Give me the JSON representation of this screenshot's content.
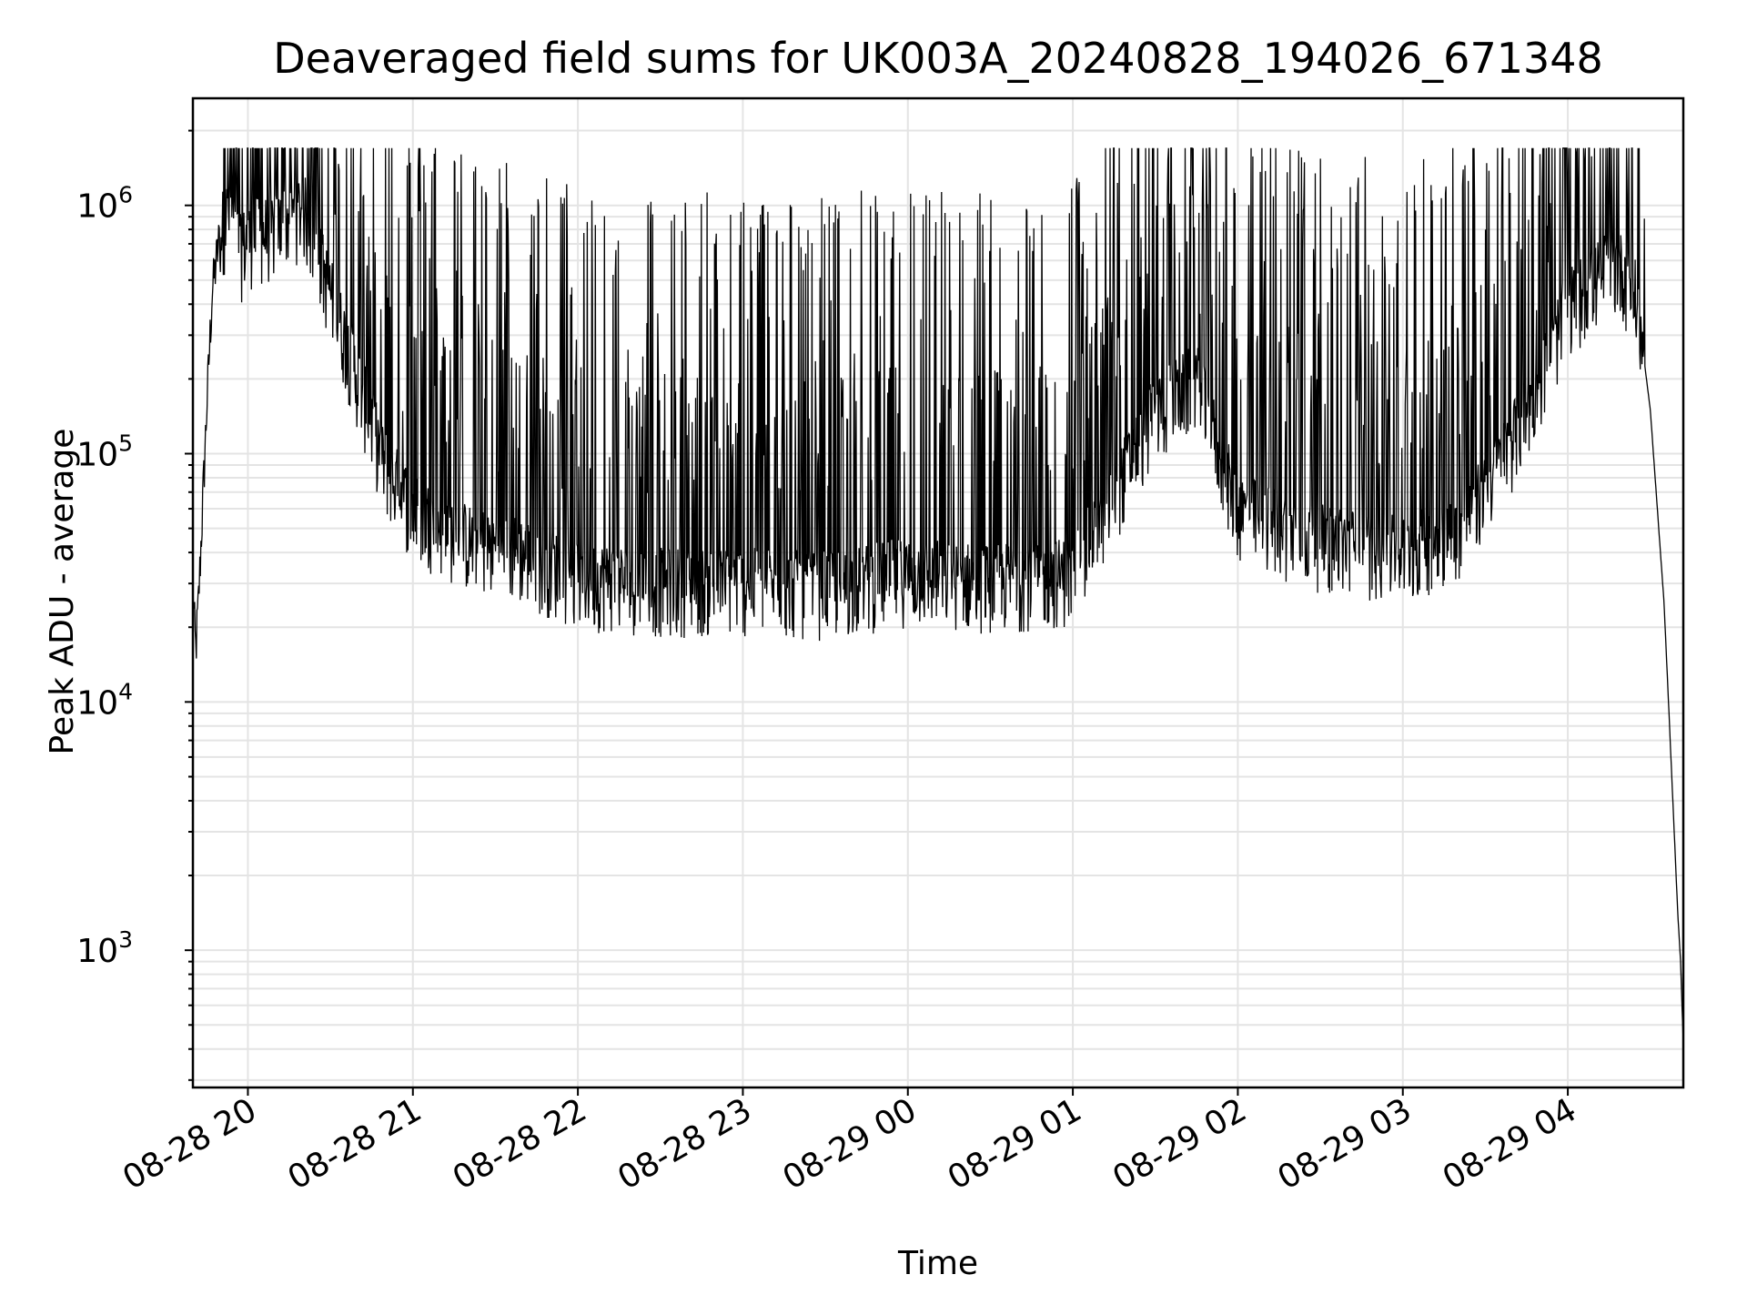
{
  "chart_data": {
    "type": "line",
    "title": "Deaveraged field sums for UK003A_20240828_194026_671348",
    "xlabel": "Time",
    "ylabel": "Peak ADU - average",
    "yscale": "log",
    "ylim": [
      280,
      2700000
    ],
    "xlim": [
      "2024-08-28 19:40",
      "2024-08-29 04:42"
    ],
    "grid": true,
    "x_ticks": [
      {
        "value": "2024-08-28 20:00",
        "label": "08-28 20"
      },
      {
        "value": "2024-08-28 21:00",
        "label": "08-28 21"
      },
      {
        "value": "2024-08-28 22:00",
        "label": "08-28 22"
      },
      {
        "value": "2024-08-28 23:00",
        "label": "08-28 23"
      },
      {
        "value": "2024-08-29 00:00",
        "label": "08-29 00"
      },
      {
        "value": "2024-08-29 01:00",
        "label": "08-29 01"
      },
      {
        "value": "2024-08-29 02:00",
        "label": "08-29 02"
      },
      {
        "value": "2024-08-29 03:00",
        "label": "08-29 03"
      },
      {
        "value": "2024-08-29 04:00",
        "label": "08-29 04"
      }
    ],
    "y_ticks": [
      {
        "value": 1000,
        "base": "10",
        "exp": "3"
      },
      {
        "value": 10000,
        "base": "10",
        "exp": "4"
      },
      {
        "value": 100000,
        "base": "10",
        "exp": "5"
      },
      {
        "value": 1000000,
        "base": "10",
        "exp": "6"
      }
    ],
    "series": [
      {
        "color": "#000000",
        "points": [
          [
            "2024-08-28 19:40",
            30000
          ],
          [
            "2024-08-28 19:41",
            16000
          ],
          [
            "2024-08-28 19:42",
            25000
          ],
          [
            "2024-08-28 19:43",
            45000
          ],
          [
            "2024-08-28 19:45",
            150000
          ],
          [
            "2024-08-28 19:47",
            450000
          ],
          [
            "2024-08-28 19:50",
            800000
          ],
          [
            "2024-08-28 19:54",
            1000000
          ],
          [
            "2024-08-28 19:57",
            650000
          ],
          [
            "2024-08-28 20:00",
            750000
          ],
          [
            "2024-08-28 20:10",
            800000
          ],
          [
            "2024-08-28 20:20",
            1000000
          ],
          [
            "2024-08-28 20:30",
            450000
          ],
          [
            "2024-08-28 20:40",
            200000
          ],
          [
            "2024-08-28 20:50",
            90000
          ],
          [
            "2024-08-28 21:00",
            60000
          ],
          [
            "2024-08-28 21:20",
            45000
          ],
          [
            "2024-08-28 21:40",
            40000
          ],
          [
            "2024-08-28 22:00",
            32000
          ],
          [
            "2024-08-28 22:30",
            30000
          ],
          [
            "2024-08-28 23:00",
            30000
          ],
          [
            "2024-08-28 23:30",
            29000
          ],
          [
            "2024-08-29 00:00",
            33000
          ],
          [
            "2024-08-29 00:30",
            31000
          ],
          [
            "2024-08-29 01:00",
            33000
          ],
          [
            "2024-08-29 01:30",
            150000
          ],
          [
            "2024-08-29 01:45",
            200000
          ],
          [
            "2024-08-29 02:00",
            60000
          ],
          [
            "2024-08-29 02:30",
            45000
          ],
          [
            "2024-08-29 03:00",
            40000
          ],
          [
            "2024-08-29 03:20",
            50000
          ],
          [
            "2024-08-29 03:35",
            90000
          ],
          [
            "2024-08-29 03:50",
            200000
          ],
          [
            "2024-08-29 04:00",
            400000
          ],
          [
            "2024-08-29 04:10",
            500000
          ],
          [
            "2024-08-29 04:15",
            600000
          ],
          [
            "2024-08-29 04:20",
            550000
          ],
          [
            "2024-08-29 04:25",
            420000
          ],
          [
            "2024-08-29 04:30",
            150000
          ],
          [
            "2024-08-29 04:35",
            25000
          ],
          [
            "2024-08-29 04:37",
            8000
          ],
          [
            "2024-08-29 04:39",
            2500
          ],
          [
            "2024-08-29 04:40",
            1400
          ],
          [
            "2024-08-29 04:41",
            900
          ],
          [
            "2024-08-29 04:42",
            420
          ]
        ]
      }
    ]
  }
}
